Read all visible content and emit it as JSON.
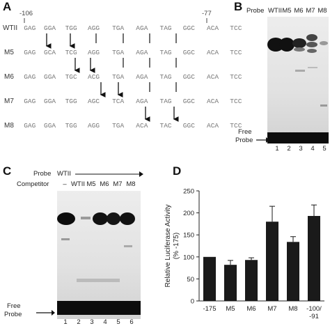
{
  "panel_A": {
    "letter": "A",
    "pos_left": "-106",
    "pos_right": "-77",
    "rows": [
      {
        "label": "WTII",
        "codons": [
          "GAG",
          "GGA",
          "TGG",
          "AGG",
          "TGA",
          "AGA",
          "TAG",
          "GGC",
          "ACA",
          "TCC"
        ]
      },
      {
        "label": "M5",
        "codons": [
          "GAG",
          "GCA",
          "TCG",
          "AGG",
          "TGA",
          "AGA",
          "TAG",
          "GGC",
          "ACA",
          "TCC"
        ]
      },
      {
        "label": "M6",
        "codons": [
          "GAG",
          "GGA",
          "TGC",
          "ACG",
          "TGA",
          "AGA",
          "TAG",
          "GGC",
          "ACA",
          "TCC"
        ]
      },
      {
        "label": "M7",
        "codons": [
          "GAG",
          "GGA",
          "TGG",
          "AGC",
          "TCA",
          "AGA",
          "TAG",
          "GGC",
          "ACA",
          "TCC"
        ]
      },
      {
        "label": "M8",
        "codons": [
          "GAG",
          "GGA",
          "TGG",
          "AGG",
          "TGA",
          "ACA",
          "TAC",
          "GGC",
          "ACA",
          "TCC"
        ]
      }
    ]
  },
  "panel_B": {
    "letter": "B",
    "probe_label": "Probe",
    "lanes": [
      "WTII",
      "M5",
      "M6",
      "M7",
      "M8"
    ],
    "lane_numbers": [
      "1",
      "2",
      "3",
      "4",
      "5"
    ],
    "free_probe": [
      "Free",
      "Probe"
    ]
  },
  "panel_C": {
    "letter": "C",
    "probe_label": "Probe",
    "probe_value": "WTII",
    "competitor_label": "Competitor",
    "lanes": [
      "–",
      "WTII",
      "M5",
      "M6",
      "M7",
      "M8"
    ],
    "lane_numbers": [
      "1",
      "2",
      "3",
      "4",
      "5",
      "6"
    ],
    "free_probe": [
      "Free",
      "Probe"
    ]
  },
  "panel_D": {
    "letter": "D"
  },
  "chart_data": {
    "type": "bar",
    "ylabel": "Relative Luciferase Activity (% -175)",
    "ylabel_lines": [
      "Relative Luciferase Activity",
      "(% -175)"
    ],
    "categories": [
      "-175",
      "M5",
      "M6",
      "M7",
      "M8",
      "-100/-91"
    ],
    "category_lines": [
      [
        "-175"
      ],
      [
        "M5"
      ],
      [
        "M6"
      ],
      [
        "M7"
      ],
      [
        "M8"
      ],
      [
        "-100/",
        "-91"
      ]
    ],
    "values": [
      100,
      82,
      93,
      180,
      134,
      193
    ],
    "errors": [
      0,
      10,
      5,
      35,
      12,
      25
    ],
    "ylim": [
      0,
      250
    ],
    "yticks": [
      "0",
      "50",
      "100",
      "150",
      "200",
      "250"
    ],
    "bar_color": "#1a1a1a"
  }
}
